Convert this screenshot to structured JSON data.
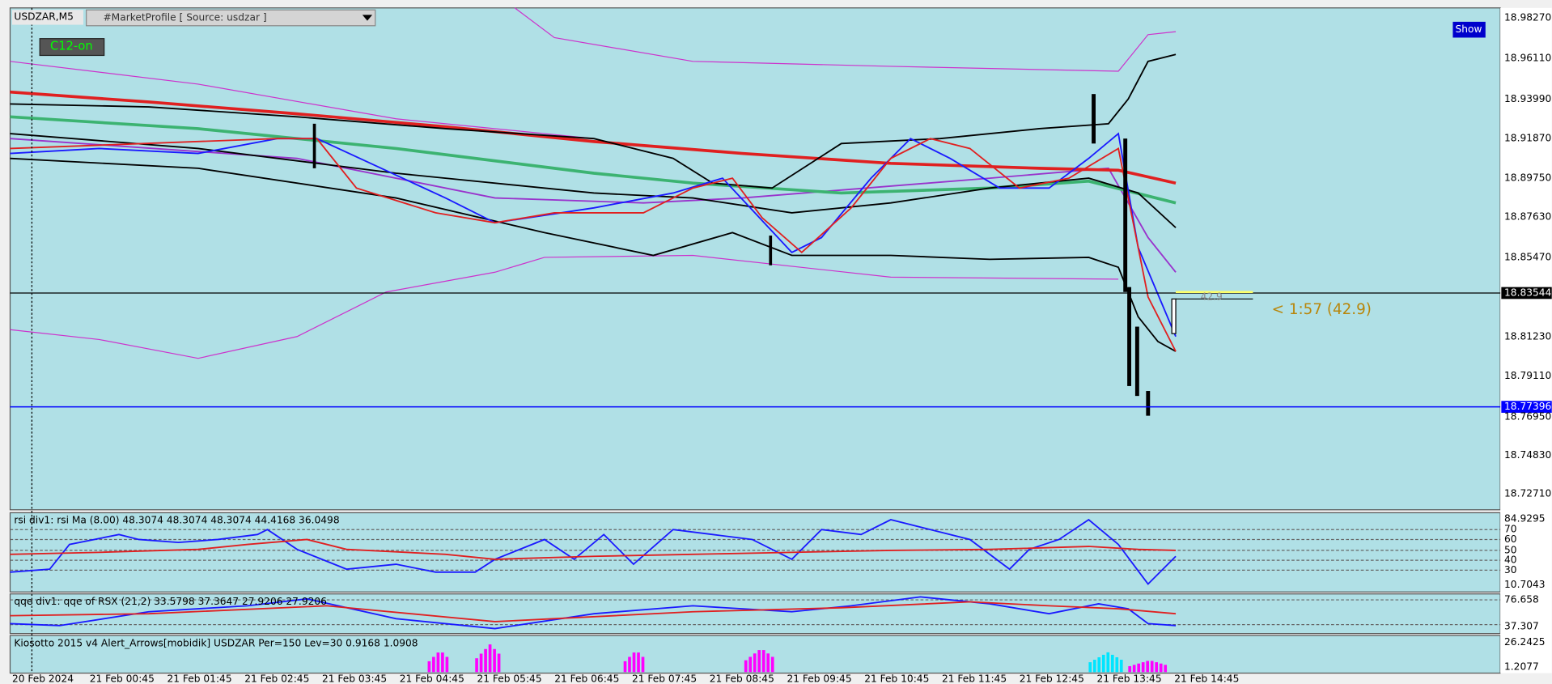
{
  "header": {
    "symbol": "USDZAR,M5",
    "indicator": "#MarketProfile [ Source: usdzar ]"
  },
  "buttons": {
    "c12": "C12-on",
    "show": "Show"
  },
  "price_axis": [
    "18.98270",
    "18.96110",
    "18.93990",
    "18.91870",
    "18.89750",
    "18.87630",
    "18.85470",
    "18.81230",
    "18.79110",
    "18.76950",
    "18.74830",
    "18.72710"
  ],
  "current_price": "18.83544",
  "line_price": "18.77396",
  "timer": {
    "label": "42.9",
    "text": "< 1:57 (42.9)"
  },
  "panels": {
    "rsi": {
      "label": "rsi div1: rsi Ma (8.00) 48.3074 48.3074 48.3074 44.4168 36.0498",
      "axis": [
        "84.9295",
        "70",
        "60",
        "50",
        "40",
        "30",
        "10.7043"
      ]
    },
    "qqe": {
      "label": "qqe div1: qqe of RSX (21,2) 33.5798 37.3647 27.9206 27.9206",
      "axis": [
        "76.658",
        "37.307"
      ]
    },
    "kiosotto": {
      "label": "Kiosotto 2015 v4 Alert_Arrows[mobidik] USDZAR Per=150 Lev=30 0.9168 1.0908",
      "axis": [
        "26.2425",
        "1.2077"
      ]
    }
  },
  "time_axis": [
    "20 Feb 2024",
    "21 Feb 00:45",
    "21 Feb 01:45",
    "21 Feb 02:45",
    "21 Feb 03:45",
    "21 Feb 04:45",
    "21 Feb 05:45",
    "21 Feb 06:45",
    "21 Feb 07:45",
    "21 Feb 08:45",
    "21 Feb 09:45",
    "21 Feb 10:45",
    "21 Feb 11:45",
    "21 Feb 12:45",
    "21 Feb 13:45",
    "21 Feb 14:45"
  ]
}
